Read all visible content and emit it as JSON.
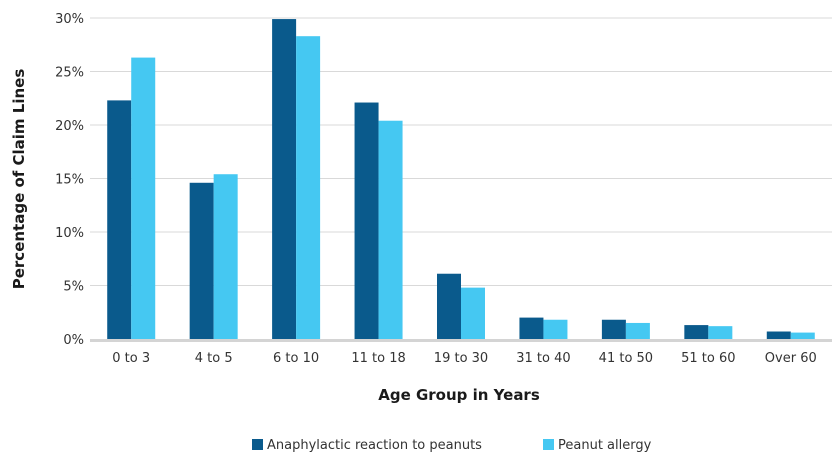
{
  "chart_data": {
    "type": "bar",
    "categories": [
      "0 to 3",
      "4 to 5",
      "6 to 10",
      "11 to 18",
      "19 to 30",
      "31 to 40",
      "41 to 50",
      "51 to 60",
      "Over 60"
    ],
    "series": [
      {
        "name": "Anaphylactic reaction to peanuts",
        "color": "#0a5a8c",
        "values": [
          22.3,
          14.6,
          29.9,
          22.1,
          6.1,
          2.0,
          1.8,
          1.3,
          0.7
        ]
      },
      {
        "name": "Peanut allergy",
        "color": "#45c8f2",
        "values": [
          26.3,
          15.4,
          28.3,
          20.4,
          4.8,
          1.8,
          1.5,
          1.2,
          0.6
        ]
      }
    ],
    "xlabel": "Age Group in Years",
    "ylabel": "Percentage of Claim Lines",
    "ylim": [
      0,
      30
    ],
    "yticks": [
      "0%",
      "5%",
      "10%",
      "15%",
      "20%",
      "25%",
      "30%"
    ],
    "grid": true,
    "legend": "bottom"
  }
}
